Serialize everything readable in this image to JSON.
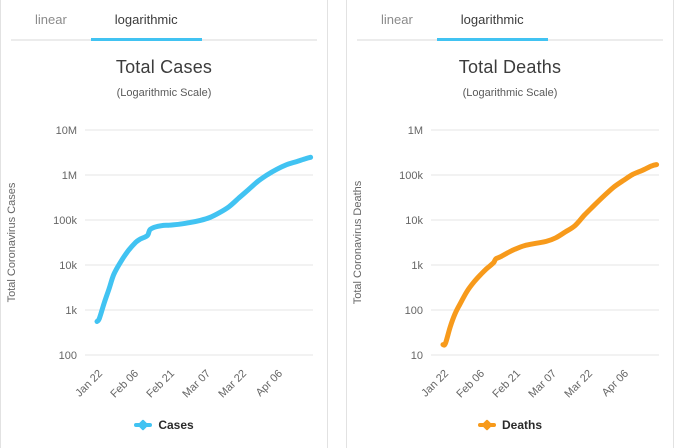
{
  "accent_blue": "#41c3f2",
  "accent_orange": "#f79a1b",
  "grid_color": "#e6e6e6",
  "panels": [
    {
      "id": "total-cases",
      "tabs": [
        {
          "label": "linear",
          "active": false
        },
        {
          "label": "logarithmic",
          "active": true
        }
      ],
      "title": "Total Cases",
      "subtitle": "(Logarithmic Scale)",
      "legend_label": "Cases",
      "color": "#41c3f2",
      "chart_data": {
        "type": "line",
        "title": "Total Cases",
        "subtitle": "(Logarithmic Scale)",
        "xlabel": "",
        "ylabel": "Total Coronavirus Cases",
        "yscale": "log",
        "ylim": [
          100,
          10000000
        ],
        "ytick_labels_top_to_bottom": [
          "10M",
          "1M",
          "100k",
          "10k",
          "1k",
          "100"
        ],
        "x_tick_labels": [
          "Jan 22",
          "Feb 06",
          "Feb 21",
          "Mar 07",
          "Mar 22",
          "Apr 06"
        ],
        "x_tick_day_offsets": [
          0,
          15,
          30,
          45,
          60,
          75
        ],
        "grid": "horizontal",
        "legend_position": "bottom",
        "series": [
          {
            "name": "Cases",
            "day_offsets": [
              0,
              1,
              3,
              5,
              7,
              10,
              13,
              16,
              18,
              21,
              22,
              24,
              27,
              30,
              34,
              39,
              43,
              47,
              51,
              55,
              59,
              63,
              67,
              71,
              75,
              79,
              83,
              87,
              89
            ],
            "values": [
              555,
              653,
              1434,
              2927,
              6166,
              12038,
              20630,
              31439,
              37552,
              45134,
              60370,
              69030,
              75136,
              76819,
              80406,
              88369,
              97882,
              113561,
              145193,
              197142,
              304524,
              467653,
              720140,
              1013466,
              1345101,
              1691719,
              1976191,
              2317759,
              2472259
            ]
          }
        ]
      }
    },
    {
      "id": "total-deaths",
      "tabs": [
        {
          "label": "linear",
          "active": false
        },
        {
          "label": "logarithmic",
          "active": true
        }
      ],
      "title": "Total Deaths",
      "subtitle": "(Logarithmic Scale)",
      "legend_label": "Deaths",
      "color": "#f79a1b",
      "chart_data": {
        "type": "line",
        "title": "Total Deaths",
        "subtitle": "(Logarithmic Scale)",
        "xlabel": "",
        "ylabel": "Total Coronavirus Deaths",
        "yscale": "log",
        "ylim": [
          10,
          1000000
        ],
        "ytick_labels_top_to_bottom": [
          "1M",
          "100k",
          "10k",
          "1k",
          "100",
          "10"
        ],
        "x_tick_labels": [
          "Jan 22",
          "Feb 06",
          "Feb 21",
          "Mar 07",
          "Mar 22",
          "Apr 06"
        ],
        "x_tick_day_offsets": [
          0,
          15,
          30,
          45,
          60,
          75
        ],
        "grid": "horizontal",
        "legend_position": "bottom",
        "series": [
          {
            "name": "Deaths",
            "day_offsets": [
              0,
              1,
              3,
              5,
              7,
              10,
              13,
              16,
              18,
              21,
              22,
              24,
              27,
              30,
              34,
              39,
              43,
              47,
              51,
              55,
              59,
              63,
              67,
              71,
              75,
              79,
              83,
              87,
              89
            ],
            "values": [
              17,
              18,
              42,
              82,
              133,
              259,
              426,
              638,
              813,
              1115,
              1369,
              1526,
              1874,
              2250,
              2701,
              3050,
              3348,
              4026,
              5437,
              7515,
              12950,
              21181,
              33925,
              52983,
              74697,
              102525,
              126604,
              159509,
              169986
            ]
          }
        ]
      }
    }
  ]
}
